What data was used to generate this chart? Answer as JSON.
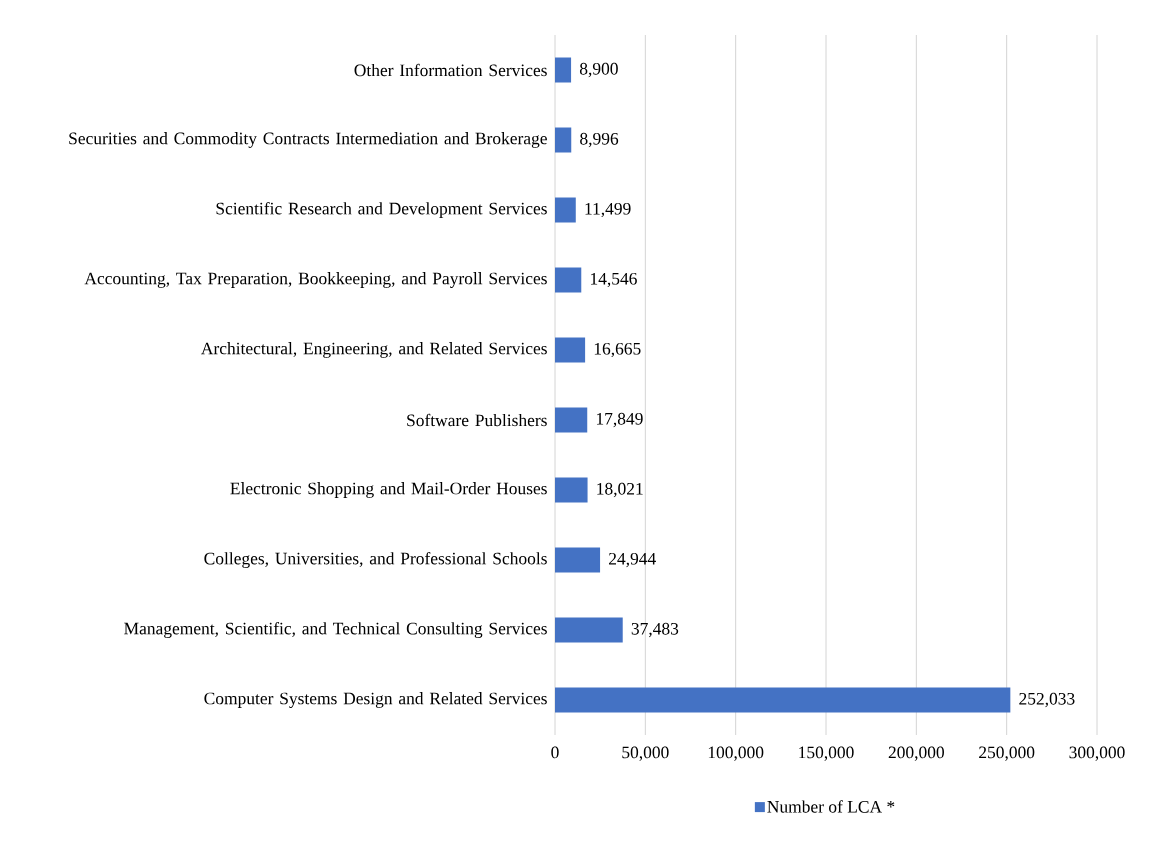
{
  "chart_data": {
    "type": "bar",
    "orientation": "horizontal",
    "categories": [
      "Other Information Services",
      "Securities and Commodity Contracts Intermediation and Brokerage",
      "Scientific Research and Development Services",
      "Accounting, Tax Preparation, Bookkeeping, and Payroll Services",
      "Architectural, Engineering, and Related Services",
      "Software Publishers",
      "Electronic Shopping and Mail-Order Houses",
      "Colleges, Universities, and Professional Schools",
      "Management, Scientific, and Technical Consulting Services",
      "Computer Systems Design and Related Services"
    ],
    "series": [
      {
        "name": "Number of LCA *",
        "color": "#4472c4",
        "values": [
          8900,
          8996,
          11499,
          14546,
          16665,
          17849,
          18021,
          24944,
          37483,
          252033
        ],
        "value_labels": [
          "8,900",
          "8,996",
          "11,499",
          "14,546",
          "16,665",
          "17,849",
          "18,021",
          "24,944",
          "37,483",
          "252,033"
        ]
      }
    ],
    "xlim": [
      0,
      300000
    ],
    "xticks": [
      0,
      {
        "value": 50000,
        "label": "50,000"
      },
      {
        "value": 100000,
        "label": "100,000"
      },
      {
        "value": 150000,
        "label": "150,000"
      },
      {
        "value": 200000,
        "label": "200,000"
      },
      {
        "value": 250000,
        "label": "250,000"
      },
      {
        "value": 300000,
        "label": "300,000"
      }
    ],
    "grid": "x",
    "legend": "bottom"
  }
}
